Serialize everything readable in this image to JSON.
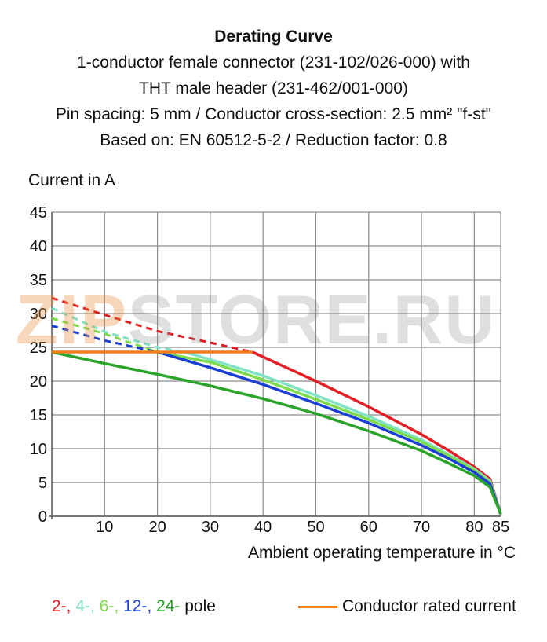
{
  "title_lines": [
    "Derating Curve",
    "1-conductor female connector (231-102/026-000) with",
    "THT male header (231-462/001-000)",
    "Pin spacing: 5 mm / Conductor cross-section: 2.5 mm² \"f-st\"",
    "Based on: EN 60512-5-2 / Reduction factor: 0.8"
  ],
  "watermark": {
    "part1": "ZIP",
    "part2": "STORE.RU"
  },
  "legend": {
    "pole_items": [
      {
        "text": "2-, ",
        "color": "#e31e24"
      },
      {
        "text": "4-, ",
        "color": "#7fe3c4"
      },
      {
        "text": "6-, ",
        "color": "#7ddc4a"
      },
      {
        "text": "12-, ",
        "color": "#1a3fd6"
      },
      {
        "text": "24-",
        "color": "#2aa52a"
      },
      {
        "text": " pole",
        "color": "#111111"
      }
    ],
    "rated_label": "Conductor rated current",
    "rated_color": "#f07d1a"
  },
  "chart_data": {
    "type": "line",
    "title": "Derating Curve",
    "xlabel": "Ambient operating temperature in °C",
    "ylabel": "Current in A",
    "xlim": [
      0,
      85
    ],
    "ylim": [
      0,
      45
    ],
    "x_ticks": [
      10,
      20,
      30,
      40,
      50,
      60,
      70,
      80,
      85
    ],
    "y_ticks": [
      0,
      5,
      10,
      15,
      20,
      25,
      30,
      35,
      40,
      45
    ],
    "grid": true,
    "legend_position": "bottom",
    "series": [
      {
        "name": "2-",
        "color": "#e31e24",
        "dashed_until": 38,
        "x": [
          0,
          10,
          20,
          30,
          38,
          50,
          60,
          70,
          75,
          80,
          83,
          85
        ],
        "y": [
          32.3,
          29.8,
          27.4,
          25.7,
          24.3,
          20.0,
          16.2,
          12.1,
          9.8,
          7.3,
          5.5,
          0.3
        ]
      },
      {
        "name": "4-",
        "color": "#7fe3c4",
        "dashed_until": 25,
        "x": [
          0,
          10,
          20,
          25,
          30,
          40,
          50,
          60,
          70,
          75,
          80,
          83,
          85
        ],
        "y": [
          30.8,
          27.3,
          25.0,
          24.3,
          23.2,
          20.8,
          17.9,
          14.8,
          11.3,
          9.2,
          7.0,
          5.2,
          0.3
        ]
      },
      {
        "name": "6-",
        "color": "#7ddc4a",
        "dashed_until": 20,
        "x": [
          0,
          10,
          20,
          30,
          40,
          50,
          60,
          70,
          75,
          80,
          83,
          85
        ],
        "y": [
          29.3,
          27.0,
          24.3,
          22.8,
          20.2,
          17.3,
          14.3,
          11.0,
          9.0,
          6.8,
          5.0,
          0.3
        ]
      },
      {
        "name": "12-",
        "color": "#1a3fd6",
        "dashed_until": 20,
        "x": [
          0,
          10,
          20,
          30,
          40,
          50,
          60,
          70,
          75,
          80,
          83,
          85
        ],
        "y": [
          28.2,
          26.0,
          24.3,
          22.0,
          19.5,
          16.7,
          13.8,
          10.5,
          8.6,
          6.5,
          4.8,
          0.3
        ]
      },
      {
        "name": "24-",
        "color": "#2aa52a",
        "dashed_until": 0,
        "x": [
          0,
          10,
          20,
          30,
          40,
          50,
          60,
          70,
          75,
          80,
          83,
          85
        ],
        "y": [
          24.3,
          22.6,
          21.0,
          19.3,
          17.4,
          15.2,
          12.6,
          9.7,
          7.9,
          6.0,
          4.3,
          0.3
        ]
      },
      {
        "name": "Conductor rated current",
        "color": "#f07d1a",
        "dashed_until": 0,
        "x": [
          0,
          38
        ],
        "y": [
          24.3,
          24.3
        ]
      }
    ]
  }
}
